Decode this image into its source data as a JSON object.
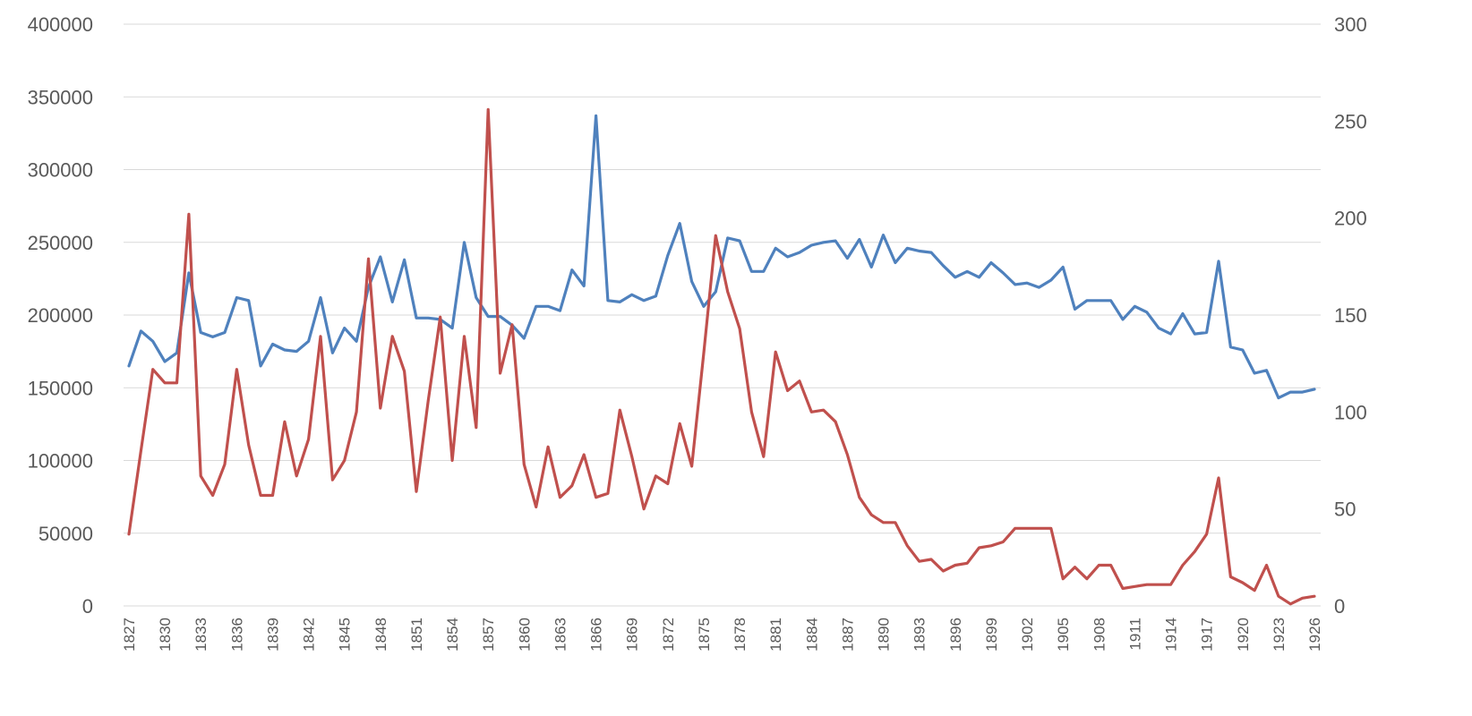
{
  "chart_data": {
    "type": "line",
    "title": "",
    "xlabel": "",
    "ylabel": "",
    "y2label": "",
    "x": [
      1827,
      1828,
      1829,
      1830,
      1831,
      1832,
      1833,
      1834,
      1835,
      1836,
      1837,
      1838,
      1839,
      1840,
      1841,
      1842,
      1843,
      1844,
      1845,
      1846,
      1847,
      1848,
      1849,
      1850,
      1851,
      1852,
      1853,
      1854,
      1855,
      1856,
      1857,
      1858,
      1859,
      1860,
      1861,
      1862,
      1863,
      1864,
      1865,
      1866,
      1867,
      1868,
      1869,
      1870,
      1871,
      1872,
      1873,
      1874,
      1875,
      1876,
      1877,
      1878,
      1879,
      1880,
      1881,
      1882,
      1883,
      1884,
      1885,
      1886,
      1887,
      1888,
      1889,
      1890,
      1891,
      1892,
      1893,
      1894,
      1895,
      1896,
      1897,
      1898,
      1899,
      1900,
      1901,
      1902,
      1903,
      1904,
      1905,
      1906,
      1907,
      1908,
      1909,
      1910,
      1911,
      1912,
      1913,
      1914,
      1915,
      1916,
      1917,
      1918,
      1919,
      1920,
      1921,
      1922,
      1923,
      1924,
      1925,
      1926
    ],
    "x_tick_labels": [
      "1827",
      "1830",
      "1833",
      "1836",
      "1839",
      "1842",
      "1845",
      "1848",
      "1851",
      "1854",
      "1857",
      "1860",
      "1863",
      "1866",
      "1869",
      "1872",
      "1875",
      "1878",
      "1881",
      "1884",
      "1887",
      "1890",
      "1893",
      "1896",
      "1899",
      "1902",
      "1905",
      "1908",
      "1911",
      "1914",
      "1917",
      "1920",
      "1923",
      "1926"
    ],
    "y_left": {
      "min": 0,
      "max": 400000,
      "ticks": [
        "0",
        "50000",
        "100000",
        "150000",
        "200000",
        "250000",
        "300000",
        "350000",
        "400000"
      ]
    },
    "y_right": {
      "min": 0,
      "max": 300,
      "ticks": [
        "0",
        "50",
        "100",
        "150",
        "200",
        "250",
        "300"
      ]
    },
    "grid": true,
    "legend": "none",
    "series": [
      {
        "axis": "left",
        "color": "#4f81bd",
        "values": [
          165000,
          189000,
          182000,
          168000,
          174000,
          229000,
          188000,
          185000,
          188000,
          212000,
          210000,
          165000,
          180000,
          176000,
          175000,
          182000,
          212000,
          174000,
          191000,
          182000,
          219000,
          240000,
          209000,
          238000,
          198000,
          198000,
          197000,
          191000,
          250000,
          212000,
          199000,
          199000,
          193000,
          184000,
          206000,
          206000,
          203000,
          231000,
          220000,
          337000,
          210000,
          209000,
          214000,
          210000,
          213000,
          241000,
          263000,
          223000,
          206000,
          216000,
          253000,
          251000,
          230000,
          230000,
          246000,
          240000,
          243000,
          248000,
          250000,
          251000,
          239000,
          252000,
          233000,
          255000,
          236000,
          246000,
          244000,
          243000,
          234000,
          226000,
          230000,
          226000,
          236000,
          229000,
          221000,
          222000,
          219000,
          224000,
          233000,
          204000,
          210000,
          210000,
          210000,
          197000,
          206000,
          202000,
          191000,
          187000,
          201000,
          187000,
          188000,
          237000,
          178000,
          176000,
          160000,
          162000,
          143000,
          147000,
          147000,
          149000
        ]
      },
      {
        "axis": "right",
        "color": "#c0504d",
        "values": [
          37,
          80,
          122,
          115,
          115,
          202,
          67,
          57,
          73,
          122,
          83,
          57,
          57,
          95,
          67,
          86,
          139,
          65,
          75,
          100,
          179,
          102,
          139,
          121,
          59,
          106,
          149,
          75,
          139,
          92,
          256,
          120,
          145,
          73,
          51,
          82,
          56,
          62,
          78,
          56,
          58,
          101,
          77,
          50,
          67,
          63,
          94,
          72,
          130,
          191,
          162,
          143,
          100,
          77,
          131,
          111,
          116,
          100,
          101,
          95,
          78,
          56,
          47,
          43,
          43,
          31,
          23,
          24,
          18,
          21,
          22,
          30,
          31,
          33,
          40,
          40,
          40,
          40,
          14,
          20,
          14,
          21,
          21,
          9,
          10,
          11,
          11,
          11,
          21,
          28,
          37,
          66,
          15,
          12,
          8,
          21,
          5,
          1,
          4,
          5
        ]
      }
    ]
  }
}
